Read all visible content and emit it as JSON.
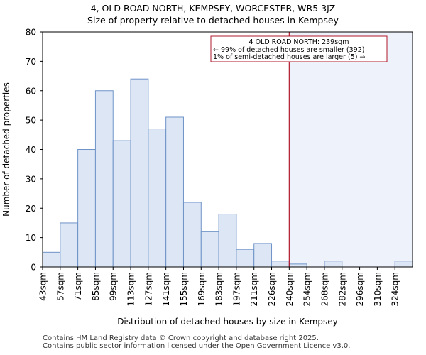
{
  "title_line1": "4, OLD ROAD NORTH, KEMPSEY, WORCESTER, WR5 3JZ",
  "title_line2": "Size of property relative to detached houses in Kempsey",
  "footer": {
    "line1": "Contains HM Land Registry data © Crown copyright and database right 2025.",
    "line2": "Contains public sector information licensed under the Open Government Licence v3.0."
  },
  "colors": {
    "bar_fill": "#dce6f5",
    "bar_stroke": "#6f93c8",
    "marker": "#b2182b",
    "shade": "#eef2fb"
  },
  "chart_data": {
    "type": "bar",
    "title": "Size of property relative to detached houses in Kempsey",
    "xlabel": "Distribution of detached houses by size in Kempsey",
    "ylabel": "Number of detached properties",
    "ylim": [
      0,
      80
    ],
    "yticks": [
      0,
      10,
      20,
      30,
      40,
      50,
      60,
      70,
      80
    ],
    "categories": [
      "43sqm",
      "57sqm",
      "71sqm",
      "85sqm",
      "99sqm",
      "113sqm",
      "127sqm",
      "141sqm",
      "155sqm",
      "169sqm",
      "183sqm",
      "197sqm",
      "211sqm",
      "226sqm",
      "240sqm",
      "254sqm",
      "268sqm",
      "282sqm",
      "296sqm",
      "310sqm",
      "324sqm"
    ],
    "values": [
      5,
      15,
      40,
      60,
      43,
      64,
      47,
      51,
      22,
      12,
      18,
      6,
      8,
      2,
      1,
      0,
      2,
      0,
      0,
      0,
      2
    ],
    "marker_index": 14,
    "annotation": {
      "line1": "4 OLD ROAD NORTH: 239sqm",
      "line2": "← 99% of detached houses are smaller (392)",
      "line3": "1% of semi-detached houses are larger (5) →"
    }
  }
}
